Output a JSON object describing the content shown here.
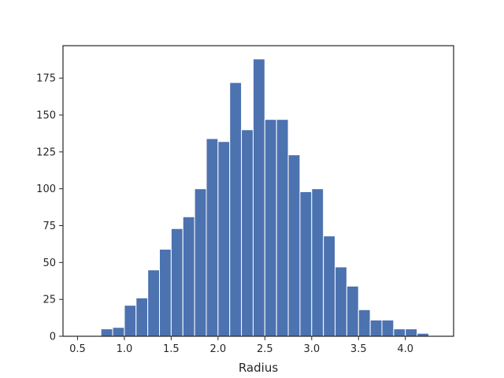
{
  "chart_data": {
    "type": "bar",
    "title": "",
    "xlabel": "Radius",
    "ylabel": "",
    "xlim": [
      0.345,
      4.515
    ],
    "ylim": [
      0,
      197
    ],
    "grid": false,
    "bar_color": "#4c72b0",
    "bins": [
      {
        "x0": 0.75,
        "x1": 0.875,
        "count": 5
      },
      {
        "x0": 0.875,
        "x1": 1.0,
        "count": 6
      },
      {
        "x0": 1.0,
        "x1": 1.125,
        "count": 21
      },
      {
        "x0": 1.125,
        "x1": 1.25,
        "count": 26
      },
      {
        "x0": 1.25,
        "x1": 1.375,
        "count": 45
      },
      {
        "x0": 1.375,
        "x1": 1.5,
        "count": 59
      },
      {
        "x0": 1.5,
        "x1": 1.625,
        "count": 73
      },
      {
        "x0": 1.625,
        "x1": 1.75,
        "count": 81
      },
      {
        "x0": 1.75,
        "x1": 1.875,
        "count": 100
      },
      {
        "x0": 1.875,
        "x1": 2.0,
        "count": 134
      },
      {
        "x0": 2.0,
        "x1": 2.125,
        "count": 132
      },
      {
        "x0": 2.125,
        "x1": 2.25,
        "count": 172
      },
      {
        "x0": 2.25,
        "x1": 2.375,
        "count": 140
      },
      {
        "x0": 2.375,
        "x1": 2.5,
        "count": 188
      },
      {
        "x0": 2.5,
        "x1": 2.625,
        "count": 147
      },
      {
        "x0": 2.625,
        "x1": 2.75,
        "count": 147
      },
      {
        "x0": 2.75,
        "x1": 2.875,
        "count": 123
      },
      {
        "x0": 2.875,
        "x1": 3.0,
        "count": 98
      },
      {
        "x0": 3.0,
        "x1": 3.125,
        "count": 100
      },
      {
        "x0": 3.125,
        "x1": 3.25,
        "count": 68
      },
      {
        "x0": 3.25,
        "x1": 3.375,
        "count": 47
      },
      {
        "x0": 3.375,
        "x1": 3.5,
        "count": 34
      },
      {
        "x0": 3.5,
        "x1": 3.625,
        "count": 18
      },
      {
        "x0": 3.625,
        "x1": 3.75,
        "count": 11
      },
      {
        "x0": 3.75,
        "x1": 3.875,
        "count": 11
      },
      {
        "x0": 3.875,
        "x1": 4.0,
        "count": 5
      },
      {
        "x0": 4.0,
        "x1": 4.125,
        "count": 5
      },
      {
        "x0": 4.125,
        "x1": 4.25,
        "count": 2
      }
    ],
    "x_ticks": [
      0.5,
      1.0,
      1.5,
      2.0,
      2.5,
      3.0,
      3.5,
      4.0
    ],
    "x_tick_labels": [
      "0.5",
      "1.0",
      "1.5",
      "2.0",
      "2.5",
      "3.0",
      "3.5",
      "4.0"
    ],
    "y_ticks": [
      0,
      25,
      50,
      75,
      100,
      125,
      150,
      175
    ],
    "y_tick_labels": [
      "0",
      "25",
      "50",
      "75",
      "100",
      "125",
      "150",
      "175"
    ]
  }
}
